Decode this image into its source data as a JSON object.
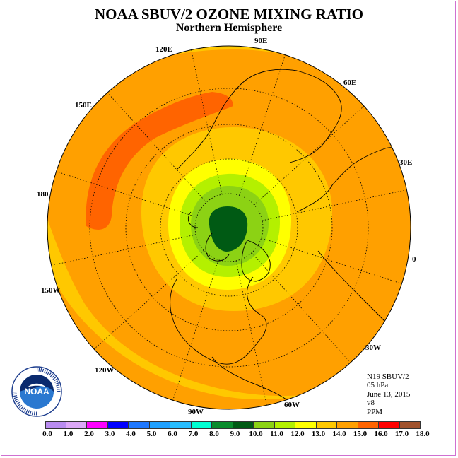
{
  "title": "NOAA SBUV/2 OZONE MIXING RATIO",
  "subtitle": "Northern Hemisphere",
  "longitude_labels": [
    "90E",
    "60E",
    "30E",
    "0",
    "30W",
    "60W",
    "90W",
    "120W",
    "150W",
    "180",
    "150E",
    "120E"
  ],
  "info": {
    "satellite": "N19 SBUV/2",
    "level": "05 hPa",
    "date": "June 13, 2015",
    "version": "v8",
    "units": "PPM"
  },
  "colorbar": {
    "ticks": [
      "0.0",
      "1.0",
      "2.0",
      "3.0",
      "4.0",
      "5.0",
      "6.0",
      "7.0",
      "8.0",
      "9.0",
      "10.0",
      "11.0",
      "12.0",
      "13.0",
      "14.0",
      "15.0",
      "16.0",
      "17.0",
      "18.0"
    ],
    "colors": [
      "#b98cf0",
      "#dda8f8",
      "#ff00ff",
      "#0000ff",
      "#1e78ff",
      "#1ea0ff",
      "#28beff",
      "#00ffd2",
      "#0a8c2d",
      "#005a14",
      "#8cd214",
      "#b4f000",
      "#ffff00",
      "#ffc800",
      "#ffa000",
      "#ff6400",
      "#ff0000",
      "#a0522d"
    ]
  },
  "logo": {
    "text": "NOAA",
    "ring_text": "NATIONAL OCEANIC AND ATMOSPHERIC ADMINISTRATION · U.S. DEPARTMENT OF COMMERCE"
  }
}
